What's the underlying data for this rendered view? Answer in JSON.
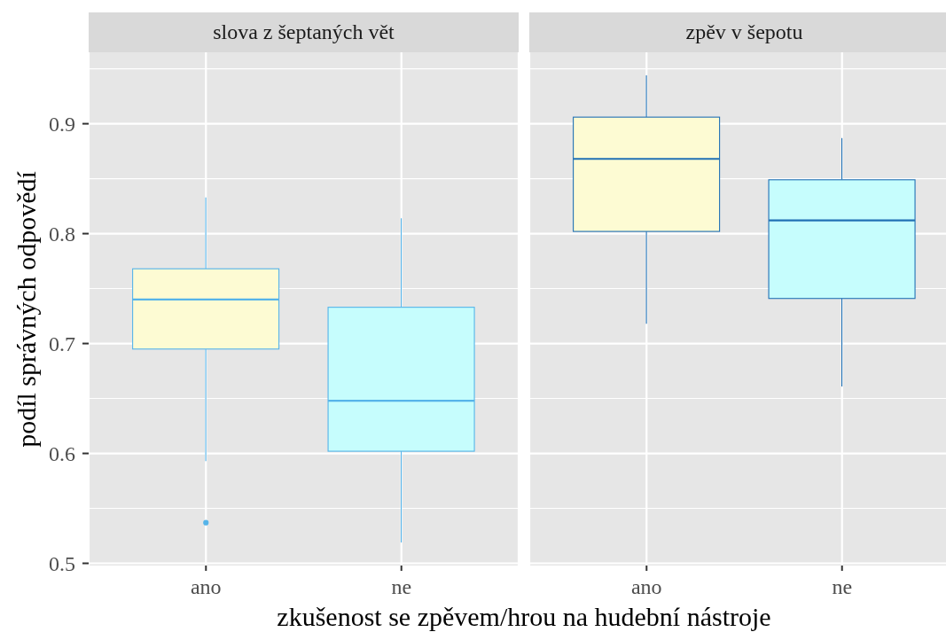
{
  "chart_data": [
    {
      "type": "box",
      "title": "slova z šeptaných vět",
      "xlabel": "zkušenost se zpěvem/hrou na hudební nástroje",
      "ylabel": "podíl správných odpovědí",
      "categories": [
        "ano",
        "ne"
      ],
      "boxes": [
        {
          "low": 0.593,
          "q1": 0.695,
          "median": 0.74,
          "q3": 0.768,
          "high": 0.833,
          "outliers": [
            0.537
          ]
        },
        {
          "low": 0.519,
          "q1": 0.602,
          "median": 0.648,
          "q3": 0.733,
          "high": 0.814
        }
      ],
      "color": "#56b4e9",
      "colors": [
        "#fdfbd3",
        "#c6fdfd"
      ],
      "ylim": [
        0.498,
        0.965
      ],
      "yticks": [
        0.5,
        {
          "value": 0.55,
          "label": null
        },
        0.6,
        {
          "value": 0.65,
          "label": null
        },
        0.7,
        {
          "value": 0.75,
          "label": null
        },
        0.8,
        {
          "value": 0.85,
          "label": null
        },
        0.9,
        {
          "value": 0.95,
          "label": null
        }
      ],
      "grid": true
    },
    {
      "type": "box",
      "title": "zpěv v šepotu",
      "categories": [
        "ano",
        "ne"
      ],
      "boxes": [
        {
          "low": 0.718,
          "q1": 0.802,
          "median": 0.868,
          "q3": 0.906,
          "high": 0.944
        },
        {
          "low": 0.661,
          "q1": 0.741,
          "median": 0.812,
          "q3": 0.849,
          "high": 0.887
        }
      ],
      "color": "#2171b5",
      "colors": [
        "#fdfbd3",
        "#c6fdfd"
      ],
      "ylim": [
        0.498,
        0.965
      ],
      "yticks": [
        0.5,
        {
          "value": 0.55,
          "label": null
        },
        0.6,
        {
          "value": 0.65,
          "label": null
        },
        0.7,
        {
          "value": 0.75,
          "label": null
        },
        0.8,
        {
          "value": 0.85,
          "label": null
        },
        0.9,
        {
          "value": 0.95,
          "label": null
        }
      ],
      "grid": true,
      "tick_labels": "x"
    }
  ]
}
